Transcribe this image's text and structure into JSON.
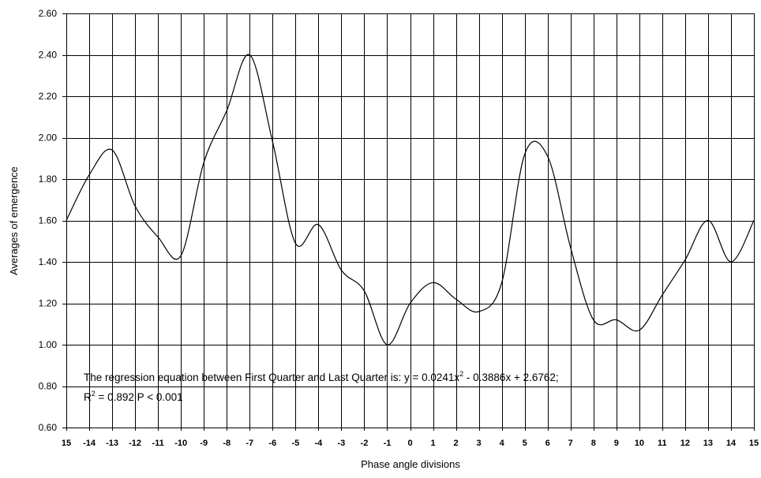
{
  "chart_data": {
    "type": "line",
    "title": "",
    "xlabel": "Phase angle divisions",
    "ylabel": "Averages of emergence",
    "x_tick_labels": [
      "15",
      "-14",
      "-13",
      "-12",
      "-11",
      "-10",
      "-9",
      "-8",
      "-7",
      "-6",
      "-5",
      "-4",
      "-3",
      "-2",
      "-1",
      "0",
      "1",
      "2",
      "3",
      "4",
      "5",
      "6",
      "7",
      "8",
      "9",
      "10",
      "11",
      "12",
      "13",
      "14",
      "15"
    ],
    "y_tick_labels": [
      "0.60",
      "0.80",
      "1.00",
      "1.20",
      "1.40",
      "1.60",
      "1.80",
      "2.00",
      "2.20",
      "2.40",
      "2.60"
    ],
    "ylim": [
      0.6,
      2.6
    ],
    "grid": true,
    "series": [
      {
        "values": [
          1.6,
          1.82,
          1.94,
          1.67,
          1.52,
          1.43,
          1.88,
          2.13,
          2.4,
          1.98,
          1.49,
          1.58,
          1.36,
          1.26,
          1.0,
          1.2,
          1.3,
          1.22,
          1.16,
          1.3,
          1.92,
          1.91,
          1.47,
          1.12,
          1.12,
          1.07,
          1.24,
          1.41,
          1.6,
          1.4,
          1.6
        ],
        "color": "#000000"
      }
    ],
    "annotations": [
      "The regression equation between First Quarter and Last Quarter is: y = 0.0241x",
      "2",
      " - 0.3886x + 2.6762;",
      "R",
      "2",
      " = 0.892 P < 0.001"
    ]
  }
}
